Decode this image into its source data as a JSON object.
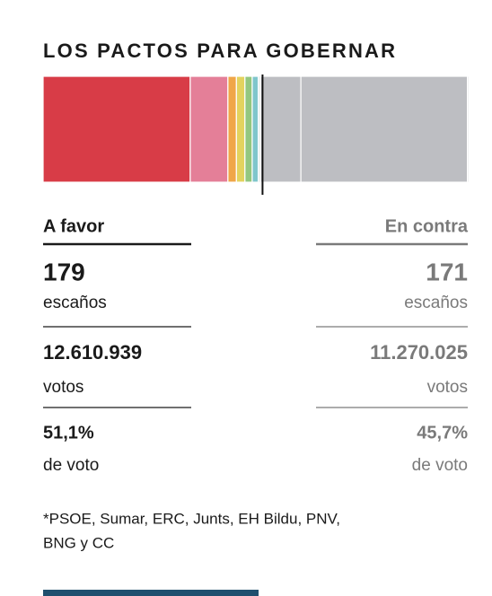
{
  "title": "LOS PACTOS PARA GOBERNAR",
  "bar": {
    "favor": [
      {
        "value": 121,
        "color": "#d83c47"
      },
      {
        "value": 31,
        "color": "#e47f98"
      },
      {
        "value": 7,
        "color": "#f0a648"
      },
      {
        "value": 7,
        "color": "#e3d35e"
      },
      {
        "value": 6,
        "color": "#93c77f"
      },
      {
        "value": 5,
        "color": "#7fc6cc"
      },
      {
        "value": 1,
        "color": "#5a9bd4"
      },
      {
        "value": 1,
        "color": "#f2d04a"
      }
    ],
    "contra": [
      {
        "value": 33,
        "color": "#bdbec2"
      },
      {
        "value": 137,
        "color": "#bdbec2"
      },
      {
        "value": 1,
        "color": "#bdbec2"
      }
    ]
  },
  "favor": {
    "heading": "A favor",
    "seats": "179",
    "seats_label": "escaños",
    "votes": "12.610.939",
    "votes_label": "votos",
    "share": "51,1%",
    "share_label": "de voto"
  },
  "contra": {
    "heading": "En contra",
    "seats": "171",
    "seats_label": "escaños",
    "votes": "11.270.025",
    "votes_label": "votos",
    "share": "45,7%",
    "share_label": "de voto"
  },
  "footnote": [
    "*PSOE, Sumar, ERC, Junts, EH Bildu, PNV,",
    "BNG y CC"
  ]
}
